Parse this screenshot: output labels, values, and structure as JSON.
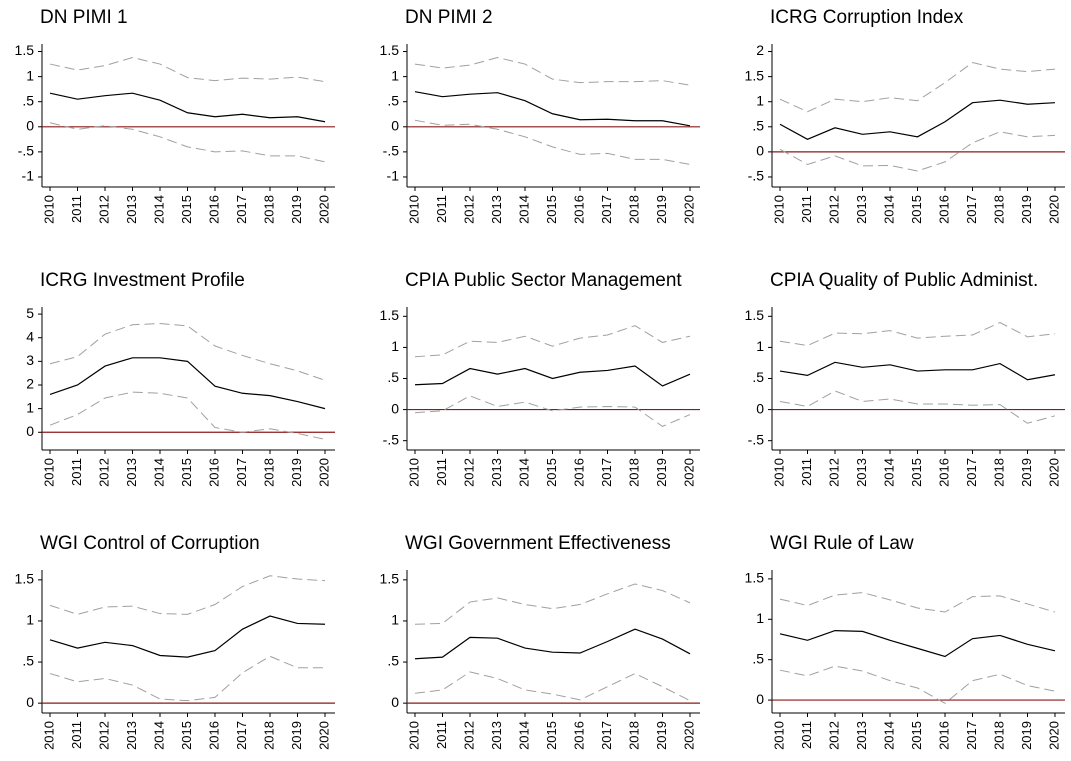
{
  "chart_data": [
    {
      "type": "line",
      "title": "DN PIMI 1",
      "categories": [
        "2010",
        "2011",
        "2012",
        "2013",
        "2014",
        "2015",
        "2016",
        "2017",
        "2018",
        "2019",
        "2020"
      ],
      "ylim": [
        -1.2,
        1.65
      ],
      "yticks": [
        1.5,
        1,
        {
          "value": 0.5,
          "label": ".5"
        },
        0,
        {
          "value": -0.5,
          "label": "-.5"
        },
        -1
      ],
      "zero_line": {
        "value": 0,
        "color": "#8b1a1a"
      },
      "series": [
        {
          "color": "#a0a0a0",
          "dash": true,
          "values": [
            1.25,
            1.13,
            1.22,
            1.38,
            1.25,
            0.98,
            0.92,
            0.97,
            0.95,
            0.99,
            0.9
          ]
        },
        {
          "color": "#000000",
          "dash": false,
          "values": [
            0.67,
            0.55,
            0.62,
            0.67,
            0.53,
            0.28,
            0.2,
            0.25,
            0.18,
            0.2,
            0.1
          ]
        },
        {
          "color": "#a0a0a0",
          "dash": true,
          "values": [
            0.08,
            -0.05,
            0.02,
            -0.05,
            -0.2,
            -0.4,
            -0.5,
            -0.48,
            -0.58,
            -0.58,
            -0.7
          ]
        }
      ]
    },
    {
      "type": "line",
      "title": "DN PIMI 2",
      "categories": [
        "2010",
        "2011",
        "2012",
        "2013",
        "2014",
        "2015",
        "2016",
        "2017",
        "2018",
        "2019",
        "2020"
      ],
      "ylim": [
        -1.2,
        1.65
      ],
      "yticks": [
        1.5,
        1,
        {
          "value": 0.5,
          "label": ".5"
        },
        0,
        {
          "value": -0.5,
          "label": "-.5"
        },
        -1
      ],
      "zero_line": {
        "value": 0,
        "color": "#8b1a1a"
      },
      "series": [
        {
          "color": "#a0a0a0",
          "dash": true,
          "values": [
            1.25,
            1.17,
            1.23,
            1.38,
            1.25,
            0.95,
            0.88,
            0.9,
            0.9,
            0.92,
            0.83
          ]
        },
        {
          "color": "#000000",
          "dash": false,
          "values": [
            0.7,
            0.6,
            0.65,
            0.68,
            0.52,
            0.26,
            0.14,
            0.15,
            0.12,
            0.12,
            0.02
          ]
        },
        {
          "color": "#a0a0a0",
          "dash": true,
          "values": [
            0.13,
            0.03,
            0.05,
            -0.05,
            -0.2,
            -0.4,
            -0.55,
            -0.53,
            -0.65,
            -0.65,
            -0.75
          ]
        }
      ]
    },
    {
      "type": "line",
      "title": "ICRG Corruption Index",
      "categories": [
        "2010",
        "2011",
        "2012",
        "2013",
        "2014",
        "2015",
        "2016",
        "2017",
        "2018",
        "2019",
        "2020"
      ],
      "ylim": [
        -0.7,
        2.15
      ],
      "yticks": [
        2,
        1.5,
        1,
        {
          "value": 0.5,
          "label": ".5"
        },
        0,
        {
          "value": -0.5,
          "label": "-.5"
        }
      ],
      "zero_line": {
        "value": 0,
        "color": "#8b1a1a"
      },
      "series": [
        {
          "color": "#a0a0a0",
          "dash": true,
          "values": [
            1.05,
            0.8,
            1.05,
            1.0,
            1.08,
            1.02,
            1.38,
            1.78,
            1.65,
            1.6,
            1.65
          ]
        },
        {
          "color": "#000000",
          "dash": false,
          "values": [
            0.55,
            0.25,
            0.48,
            0.35,
            0.4,
            0.3,
            0.6,
            0.98,
            1.03,
            0.95,
            0.98
          ]
        },
        {
          "color": "#a0a0a0",
          "dash": true,
          "values": [
            0.05,
            -0.25,
            -0.08,
            -0.28,
            -0.27,
            -0.38,
            -0.2,
            0.18,
            0.4,
            0.3,
            0.33
          ]
        }
      ]
    },
    {
      "type": "line",
      "title": "ICRG Investment Profile",
      "categories": [
        "2010",
        "2011",
        "2012",
        "2013",
        "2014",
        "2015",
        "2016",
        "2017",
        "2018",
        "2019",
        "2020"
      ],
      "ylim": [
        -0.75,
        5.3
      ],
      "yticks": [
        5,
        4,
        3,
        2,
        1,
        0
      ],
      "zero_line": {
        "value": 0,
        "color": "#8b1a1a"
      },
      "series": [
        {
          "color": "#a0a0a0",
          "dash": true,
          "values": [
            2.9,
            3.2,
            4.15,
            4.55,
            4.6,
            4.5,
            3.65,
            3.25,
            2.9,
            2.6,
            2.2
          ]
        },
        {
          "color": "#000000",
          "dash": false,
          "values": [
            1.6,
            2.0,
            2.8,
            3.15,
            3.15,
            3.0,
            1.95,
            1.65,
            1.55,
            1.3,
            1.0
          ]
        },
        {
          "color": "#a0a0a0",
          "dash": true,
          "values": [
            0.3,
            0.75,
            1.45,
            1.7,
            1.65,
            1.45,
            0.2,
            0,
            0.15,
            -0.05,
            -0.3
          ]
        }
      ]
    },
    {
      "type": "line",
      "title": "CPIA Public Sector Management",
      "categories": [
        "2010",
        "2011",
        "2012",
        "2013",
        "2014",
        "2015",
        "2016",
        "2017",
        "2018",
        "2019",
        "2020"
      ],
      "ylim": [
        -0.65,
        1.65
      ],
      "yticks": [
        1.5,
        1,
        {
          "value": 0.5,
          "label": ".5"
        },
        0,
        {
          "value": -0.5,
          "label": "-.5"
        }
      ],
      "zero_line": {
        "value": 0,
        "color": "#8b1a1a"
      },
      "series": [
        {
          "color": "#a0a0a0",
          "dash": true,
          "values": [
            0.85,
            0.88,
            1.1,
            1.08,
            1.18,
            1.02,
            1.15,
            1.2,
            1.35,
            1.08,
            1.18
          ]
        },
        {
          "color": "#000000",
          "dash": false,
          "values": [
            0.4,
            0.42,
            0.66,
            0.57,
            0.66,
            0.5,
            0.6,
            0.63,
            0.7,
            0.38,
            0.57
          ]
        },
        {
          "color": "#a0a0a0",
          "dash": true,
          "values": [
            -0.05,
            -0.02,
            0.22,
            0.05,
            0.12,
            -0.02,
            0.04,
            0.05,
            0.04,
            -0.27,
            -0.08
          ]
        }
      ]
    },
    {
      "type": "line",
      "title": "CPIA Quality of Public Administ.",
      "categories": [
        "2010",
        "2011",
        "2012",
        "2013",
        "2014",
        "2015",
        "2016",
        "2017",
        "2018",
        "2019",
        "2020"
      ],
      "ylim": [
        -0.65,
        1.65
      ],
      "yticks": [
        1.5,
        1,
        {
          "value": 0.5,
          "label": ".5"
        },
        0,
        {
          "value": -0.5,
          "label": "-.5"
        }
      ],
      "zero_line": {
        "value": 0,
        "color": "#8b1a1a"
      },
      "series": [
        {
          "color": "#a0a0a0",
          "dash": true,
          "values": [
            1.1,
            1.03,
            1.23,
            1.22,
            1.27,
            1.15,
            1.18,
            1.2,
            1.4,
            1.17,
            1.22
          ]
        },
        {
          "color": "#000000",
          "dash": false,
          "values": [
            0.62,
            0.55,
            0.76,
            0.68,
            0.72,
            0.62,
            0.64,
            0.64,
            0.74,
            0.48,
            0.56
          ]
        },
        {
          "color": "#a0a0a0",
          "dash": true,
          "values": [
            0.13,
            0.05,
            0.3,
            0.13,
            0.17,
            0.09,
            0.09,
            0.07,
            0.08,
            -0.22,
            -0.1
          ]
        }
      ]
    },
    {
      "type": "line",
      "title": "WGI Control of Corruption",
      "categories": [
        "2010",
        "2011",
        "2012",
        "2013",
        "2014",
        "2015",
        "2016",
        "2017",
        "2018",
        "2019",
        "2020"
      ],
      "ylim": [
        -0.12,
        1.62
      ],
      "yticks": [
        1.5,
        1,
        {
          "value": 0.5,
          "label": ".5"
        },
        0
      ],
      "zero_line": {
        "value": 0,
        "color": "#8b1a1a"
      },
      "series": [
        {
          "color": "#a0a0a0",
          "dash": true,
          "values": [
            1.19,
            1.08,
            1.17,
            1.18,
            1.09,
            1.08,
            1.2,
            1.42,
            1.55,
            1.51,
            1.49
          ]
        },
        {
          "color": "#000000",
          "dash": false,
          "values": [
            0.77,
            0.67,
            0.74,
            0.7,
            0.58,
            0.56,
            0.64,
            0.9,
            1.06,
            0.97,
            0.96
          ]
        },
        {
          "color": "#a0a0a0",
          "dash": true,
          "values": [
            0.36,
            0.26,
            0.3,
            0.22,
            0.05,
            0.03,
            0.07,
            0.37,
            0.57,
            0.43,
            0.43
          ]
        }
      ]
    },
    {
      "type": "line",
      "title": "WGI Government Effectiveness",
      "categories": [
        "2010",
        "2011",
        "2012",
        "2013",
        "2014",
        "2015",
        "2016",
        "2017",
        "2018",
        "2019",
        "2020"
      ],
      "ylim": [
        -0.12,
        1.62
      ],
      "yticks": [
        1.5,
        1,
        {
          "value": 0.5,
          "label": ".5"
        },
        0
      ],
      "zero_line": {
        "value": 0,
        "color": "#8b1a1a"
      },
      "series": [
        {
          "color": "#a0a0a0",
          "dash": true,
          "values": [
            0.96,
            0.97,
            1.23,
            1.28,
            1.2,
            1.15,
            1.2,
            1.33,
            1.45,
            1.37,
            1.22
          ]
        },
        {
          "color": "#000000",
          "dash": false,
          "values": [
            0.54,
            0.56,
            0.8,
            0.79,
            0.67,
            0.62,
            0.61,
            0.75,
            0.9,
            0.78,
            0.6
          ]
        },
        {
          "color": "#a0a0a0",
          "dash": true,
          "values": [
            0.12,
            0.16,
            0.38,
            0.3,
            0.16,
            0.11,
            0.04,
            0.2,
            0.36,
            0.2,
            0.03
          ]
        }
      ]
    },
    {
      "type": "line",
      "title": "WGI Rule of Law",
      "categories": [
        "2010",
        "2011",
        "2012",
        "2013",
        "2014",
        "2015",
        "2016",
        "2017",
        "2018",
        "2019",
        "2020"
      ],
      "ylim": [
        -0.16,
        1.61
      ],
      "yticks": [
        1.5,
        1,
        {
          "value": 0.5,
          "label": ".5"
        },
        0
      ],
      "zero_line": {
        "value": 0,
        "color": "#8b1a1a"
      },
      "series": [
        {
          "color": "#a0a0a0",
          "dash": true,
          "values": [
            1.25,
            1.17,
            1.3,
            1.33,
            1.24,
            1.14,
            1.09,
            1.28,
            1.29,
            1.19,
            1.09
          ]
        },
        {
          "color": "#000000",
          "dash": false,
          "values": [
            0.82,
            0.74,
            0.86,
            0.85,
            0.74,
            0.64,
            0.54,
            0.76,
            0.8,
            0.69,
            0.61
          ]
        },
        {
          "color": "#a0a0a0",
          "dash": true,
          "values": [
            0.37,
            0.3,
            0.42,
            0.36,
            0.24,
            0.15,
            -0.04,
            0.24,
            0.32,
            0.18,
            0.11
          ]
        }
      ]
    }
  ]
}
